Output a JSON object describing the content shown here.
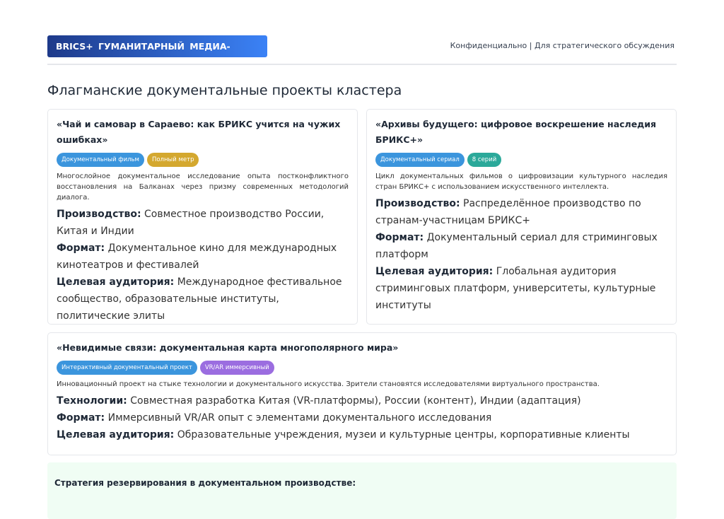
{
  "header": {
    "brand": "BRICS+ ГУМАНИТАРНЫЙ МЕДИА-КЛАСТЕР",
    "confidential": "Конфиденциально | Для стратегического обсуждения"
  },
  "page_title": "Флагманские документальные проекты кластера",
  "colors": {
    "blue": "#3b95dd",
    "gold": "#d4a82f",
    "teal": "#2ba99a",
    "purple": "#9b6de0"
  },
  "projects": [
    {
      "title": "«Чай и самовар в Сараево: как БРИКС учится на чужих ошибках»",
      "badges": [
        "Документальный фильм",
        "Полный метр"
      ],
      "description": "Многослойное документальное исследование опыта постконфликтного восстановления на Балканах через призму современных методологий диалога.",
      "fields": [
        {
          "label": "Производство:",
          "value": "Совместное производство России, Китая и Индии"
        },
        {
          "label": "Формат:",
          "value": "Документальное кино для международных кинотеатров и фестивалей"
        },
        {
          "label": "Целевая аудитория:",
          "value": "Международное фестивальное сообщество, образовательные институты, политические элиты"
        }
      ]
    },
    {
      "title": "«Архивы будущего: цифровое воскрешение наследия БРИКС+»",
      "badges": [
        "Документальный сериал",
        "8 серий"
      ],
      "description": "Цикл документальных фильмов о цифровизации культурного наследия стран БРИКС+ с использованием искусственного интеллекта.",
      "fields": [
        {
          "label": "Производство:",
          "value": "Распределённое производство по странам-участницам БРИКС+"
        },
        {
          "label": "Формат:",
          "value": "Документальный сериал для стриминговых платформ"
        },
        {
          "label": "Целевая аудитория:",
          "value": "Глобальная аудитория стриминговых платформ, университеты, культурные институты"
        }
      ]
    },
    {
      "title": "«Невидимые связи: документальная карта многополярного мира»",
      "badges": [
        "Интерактивный документальный проект",
        "VR/AR иммерсивный"
      ],
      "description": "Инновационный проект на стыке технологии и документального искусства. Зрители становятся исследователями виртуального пространства.",
      "fields": [
        {
          "label": "Технологии:",
          "value": "Совместная разработка Китая (VR-платформы), России (контент), Индии (адаптация)"
        },
        {
          "label": "Формат:",
          "value": "Иммерсивный VR/AR опыт с элементами документального исследования"
        },
        {
          "label": "Целевая аудитория:",
          "value": "Образовательные учреждения, музеи и культурные центры, корпоративные клиенты"
        }
      ]
    }
  ],
  "strategy_title": "Стратегия резервирования в документальном производстве:"
}
